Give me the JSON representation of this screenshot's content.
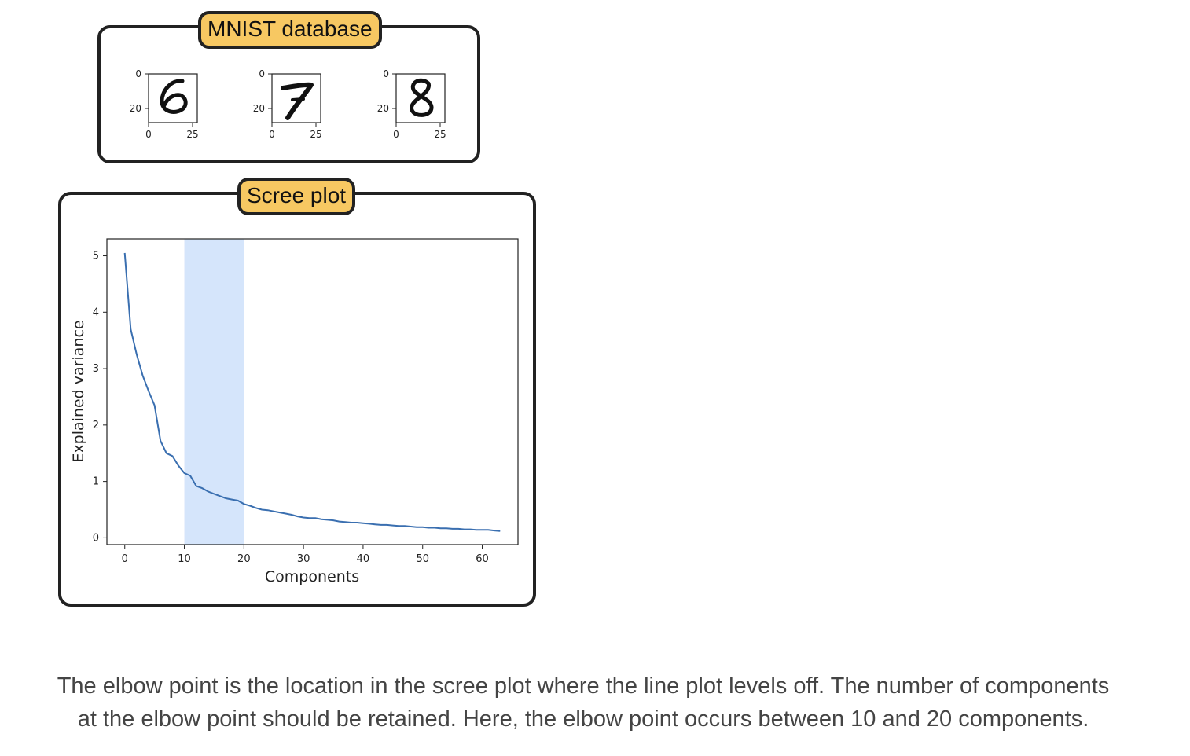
{
  "mnist": {
    "title": "MNIST database",
    "digits": [
      {
        "glyph": "6",
        "y_ticks": [
          "0",
          "20"
        ],
        "x_ticks": [
          "0",
          "25"
        ]
      },
      {
        "glyph": "7",
        "y_ticks": [
          "0",
          "20"
        ],
        "x_ticks": [
          "0",
          "25"
        ]
      },
      {
        "glyph": "8",
        "y_ticks": [
          "0",
          "20"
        ],
        "x_ticks": [
          "0",
          "25"
        ]
      }
    ]
  },
  "scree": {
    "title": "Scree plot"
  },
  "chart_data": {
    "type": "line",
    "xlabel": "Components",
    "ylabel": "Explained variance",
    "xlim": [
      -3,
      66
    ],
    "ylim": [
      -0.12,
      5.3
    ],
    "x_ticks": [
      0,
      10,
      20,
      30,
      40,
      50,
      60
    ],
    "y_ticks": [
      0,
      1,
      2,
      3,
      4,
      5
    ],
    "highlight_range": [
      10,
      20
    ],
    "line_color": "#3a6fb0",
    "highlight_color": "#d5e5fb",
    "series": [
      {
        "x": [
          0,
          1,
          2,
          3,
          4,
          5,
          6,
          7,
          8,
          9,
          10,
          11,
          12,
          13,
          14,
          15,
          16,
          17,
          18,
          19,
          20,
          21,
          22,
          23,
          24,
          25,
          26,
          27,
          28,
          29,
          30,
          31,
          32,
          33,
          34,
          35,
          36,
          37,
          38,
          39,
          40,
          41,
          42,
          43,
          44,
          45,
          46,
          47,
          48,
          49,
          50,
          51,
          52,
          53,
          54,
          55,
          56,
          57,
          58,
          59,
          60,
          61,
          62,
          63
        ],
        "values": [
          5.05,
          3.7,
          3.25,
          2.88,
          2.6,
          2.35,
          1.72,
          1.5,
          1.45,
          1.28,
          1.15,
          1.1,
          0.92,
          0.88,
          0.82,
          0.78,
          0.74,
          0.7,
          0.68,
          0.66,
          0.6,
          0.57,
          0.53,
          0.5,
          0.49,
          0.47,
          0.45,
          0.43,
          0.41,
          0.38,
          0.36,
          0.35,
          0.35,
          0.33,
          0.32,
          0.31,
          0.29,
          0.28,
          0.27,
          0.27,
          0.26,
          0.25,
          0.24,
          0.23,
          0.23,
          0.22,
          0.21,
          0.21,
          0.2,
          0.19,
          0.19,
          0.18,
          0.18,
          0.17,
          0.17,
          0.16,
          0.16,
          0.15,
          0.15,
          0.14,
          0.14,
          0.14,
          0.13,
          0.12
        ]
      }
    ]
  },
  "caption": {
    "line1": "The elbow point is the location in the scree plot where the line plot levels off. The number of components",
    "line2": "at the elbow point should be retained. Here, the elbow point occurs between 10 and 20 components."
  }
}
